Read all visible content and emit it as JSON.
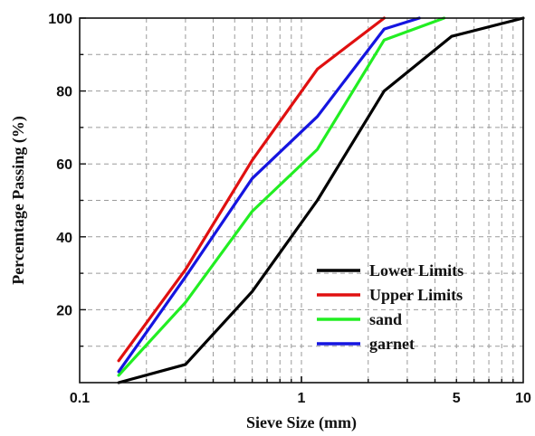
{
  "chart_data": {
    "type": "line",
    "title": "",
    "xlabel": "Sieve Size (mm)",
    "ylabel": "Percemtage Passing (%)",
    "x_scale": "log",
    "xlim": [
      0.1,
      10
    ],
    "ylim": [
      0,
      100
    ],
    "x_ticks": [
      {
        "value": 0.1,
        "label": "0.1"
      },
      {
        "value": 1,
        "label": "1"
      },
      {
        "value": 5,
        "label": "5"
      },
      {
        "value": 10,
        "label": "10"
      }
    ],
    "y_ticks": [
      {
        "value": 20,
        "label": "20"
      },
      {
        "value": 40,
        "label": "40"
      },
      {
        "value": 60,
        "label": "60"
      },
      {
        "value": 80,
        "label": "80"
      },
      {
        "value": 100,
        "label": "100"
      }
    ],
    "grid": "dashed",
    "legend_position": "bottom-right",
    "series": [
      {
        "name": "Lower Limits",
        "color": "#000000",
        "x": [
          0.15,
          0.3,
          0.6,
          1.18,
          2.36,
          4.75,
          10
        ],
        "y": [
          0,
          5,
          25,
          50,
          80,
          95,
          100
        ]
      },
      {
        "name": "Upper Limits",
        "color": "#e01010",
        "x": [
          0.15,
          0.3,
          0.6,
          1.18,
          2.36
        ],
        "y": [
          6,
          31,
          61,
          86,
          100
        ]
      },
      {
        "name": "sand",
        "color": "#22ee22",
        "x": [
          0.15,
          0.3,
          0.6,
          1.18,
          2.36,
          4.4
        ],
        "y": [
          2,
          22,
          47,
          64,
          94,
          100
        ]
      },
      {
        "name": "garnet",
        "color": "#1515e0",
        "x": [
          0.15,
          0.3,
          0.6,
          1.18,
          2.36,
          3.4
        ],
        "y": [
          3,
          29,
          56,
          73,
          97,
          100
        ]
      }
    ]
  }
}
